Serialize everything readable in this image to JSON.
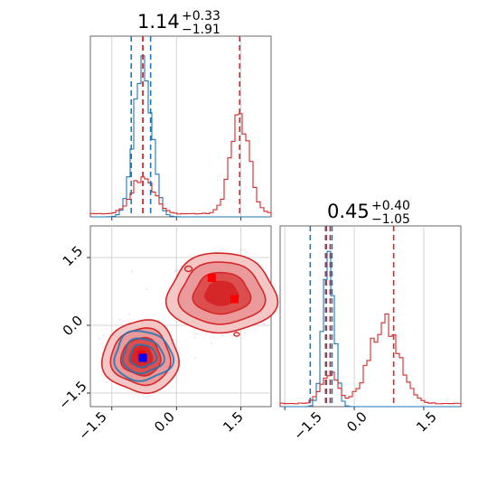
{
  "chart_data": {
    "type": "corner",
    "series_colors": {
      "blue": "#1f77b4",
      "red": "#d62728"
    },
    "titles": [
      {
        "value": "1.14",
        "plus": "+0.33",
        "minus": "−1.91"
      },
      {
        "value": "0.45",
        "plus": "+0.40",
        "minus": "−1.05"
      }
    ],
    "x_ticks": [
      "−1.5",
      "0.0",
      "1.5"
    ],
    "y_ticks": [
      "1.5",
      "0.0",
      "−1.5"
    ],
    "x_tick_values": [
      -1.5,
      0.0,
      1.5
    ],
    "y_tick_values": [
      1.5,
      0.0,
      -1.5
    ],
    "xlim": [
      -2.0,
      2.2
    ],
    "ylim": [
      -1.8,
      2.2
    ],
    "hist1": {
      "blue_quantiles": [
        -1.05,
        -0.78,
        -0.6
      ],
      "red_quantiles": [
        -0.78,
        1.47
      ],
      "blue_peak": {
        "mean": -0.78,
        "sd": 0.2
      },
      "red_peaks": [
        {
          "mean": -0.78,
          "sd": 0.25,
          "weight": 0.25
        },
        {
          "mean": 1.47,
          "sd": 0.22,
          "weight": 0.6
        }
      ]
    },
    "hist2": {
      "blue_quantiles": [
        -0.95,
        -0.62,
        -0.48
      ],
      "red_quantiles": [
        -0.6,
        -0.52,
        0.85
      ],
      "blue_peak": {
        "mean": -0.55,
        "sd": 0.12
      },
      "red_peaks": [
        {
          "mean": -0.55,
          "sd": 0.18,
          "weight": 0.2
        },
        {
          "mean": 0.65,
          "sd": 0.32,
          "weight": 0.5
        }
      ]
    },
    "scatter": {
      "red_clusters": [
        {
          "center": [
            -0.82,
            -0.7
          ],
          "spread": [
            0.42,
            0.38
          ]
        },
        {
          "center": [
            1.05,
            0.7
          ],
          "spread": [
            0.6,
            0.42
          ]
        }
      ],
      "blue_cluster": {
        "center": [
          -0.78,
          -0.68
        ],
        "spread": [
          0.32,
          0.26
        ]
      },
      "red_markers": [
        [
          0.82,
          1.05
        ],
        [
          1.35,
          0.58
        ],
        [
          -0.82,
          -0.65
        ]
      ],
      "blue_marker": [
        -0.78,
        -0.72
      ]
    }
  }
}
